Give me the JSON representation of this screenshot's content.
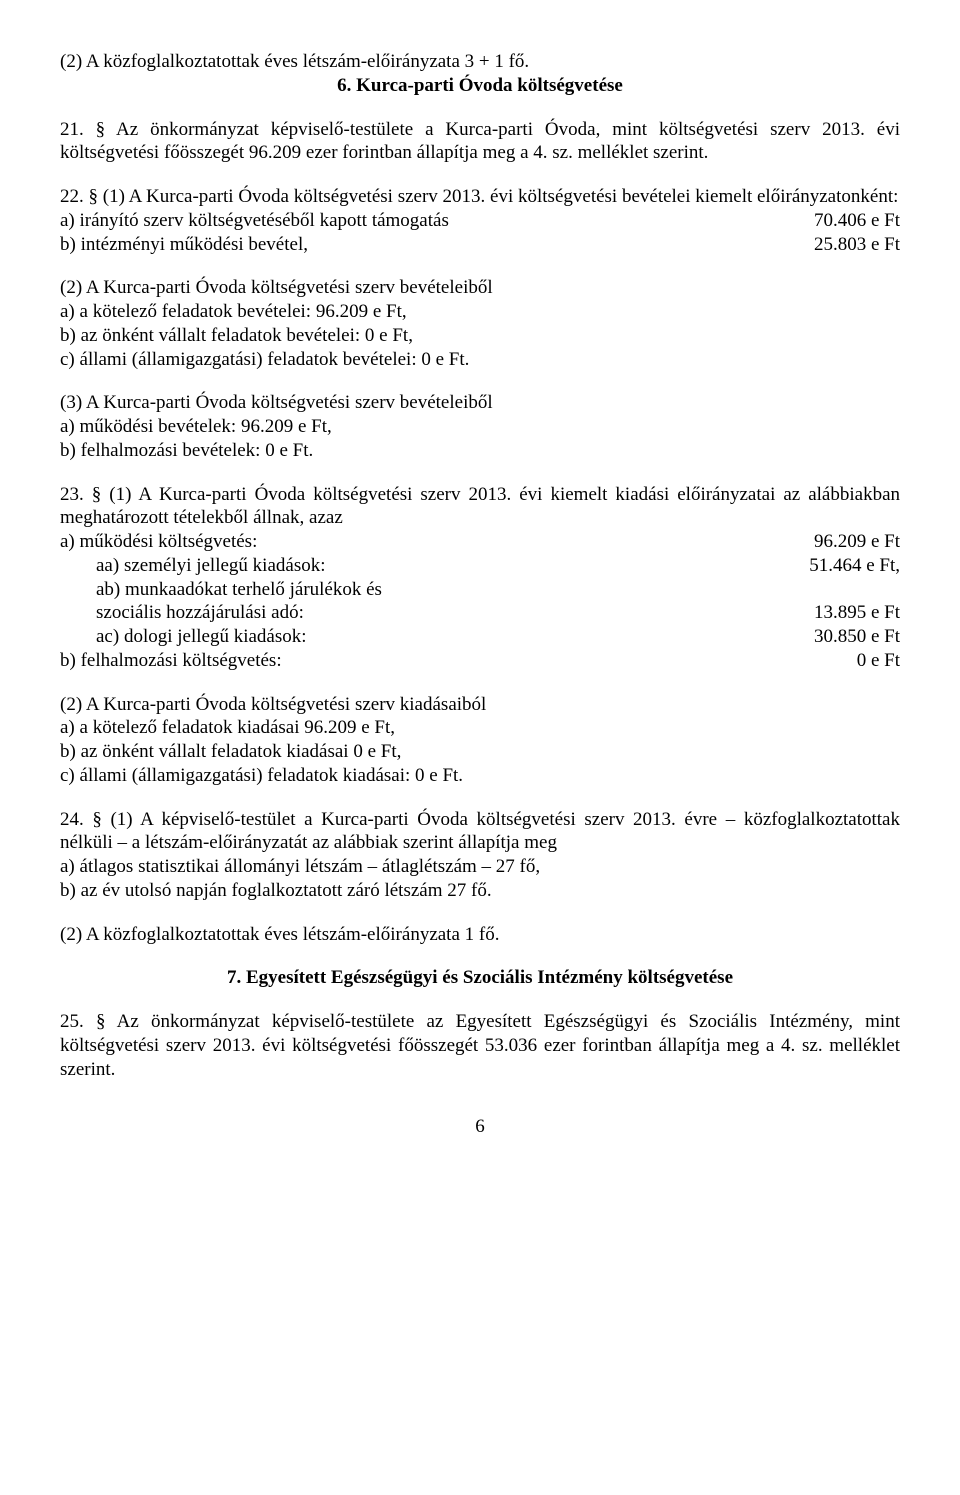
{
  "p1": "(2) A közfoglalkoztatottak éves létszám-előirányzata 3 + 1 fő.",
  "h6": "6. Kurca-parti Óvoda költségvetése",
  "p21": "21. § Az önkormányzat képviselő-testülete a Kurca-parti Óvoda, mint költségvetési szerv 2013. évi költségvetési főösszegét 96.209 ezer forintban állapítja meg a 4. sz. melléklet szerint.",
  "p22_intro": "22. § (1) A Kurca-parti Óvoda  költségvetési szerv 2013. évi költségvetési bevételei kiemelt előirányzatonként:",
  "p22_a_label": "a) irányító szerv költségvetéséből kapott támogatás",
  "p22_a_value": "70.406 e Ft",
  "p22_b_label": "b) intézményi működési bevétel,",
  "p22_b_value": "25.803 e Ft",
  "p22_2a": "(2) A Kurca-parti Óvoda költségvetési szerv bevételeiből",
  "p22_2b": "a) a kötelező feladatok bevételei: 96.209 e Ft,",
  "p22_2c": "b) az önként vállalt feladatok bevételei: 0 e Ft,",
  "p22_2d": "c) állami (államigazgatási) feladatok bevételei: 0 e Ft.",
  "p22_3a": "(3) A Kurca-parti Óvoda költségvetési szerv bevételeiből",
  "p22_3b": "a) működési bevételek: 96.209 e Ft,",
  "p22_3c": "b) felhalmozási bevételek: 0 e Ft.",
  "p23_intro": "23. § (1) A Kurca-parti Óvoda költségvetési szerv 2013. évi kiemelt kiadási előirányzatai az alábbiakban meghatározott tételekből állnak, azaz",
  "p23_a_label": "a) működési költségvetés:",
  "p23_a_value": "96.209 e Ft",
  "p23_aa_label": "aa) személyi jellegű kiadások:",
  "p23_aa_value": "51.464 e Ft,",
  "p23_ab_label1": "ab) munkaadókat terhelő járulékok és",
  "p23_ab_label2": "szociális hozzájárulási adó:",
  "p23_ab_value": "13.895 e Ft",
  "p23_ac_label": "ac) dologi jellegű kiadások:",
  "p23_ac_value": "30.850 e Ft",
  "p23_b_label": "b) felhalmozási költségvetés:",
  "p23_b_value": "0 e Ft",
  "p23_2a": "(2) A Kurca-parti Óvoda költségvetési szerv kiadásaiból",
  "p23_2b": "a) a kötelező feladatok kiadásai 96.209 e Ft,",
  "p23_2c": "b) az önként vállalt feladatok kiadásai 0 e Ft,",
  "p23_2d": "c) állami (államigazgatási) feladatok kiadásai: 0 e Ft.",
  "p24": "24. § (1) A képviselő-testület a Kurca-parti Óvoda költségvetési szerv 2013. évre – közfoglalkoztatottak nélküli – a létszám-előirányzatát az alábbiak szerint állapítja meg",
  "p24a": "a) átlagos statisztikai állományi létszám – átlaglétszám – 27 fő,",
  "p24b": "b) az év utolsó napján foglalkoztatott záró létszám 27 fő.",
  "p24_2": "(2) A közfoglalkoztatottak éves létszám-előirányzata 1 fő.",
  "h7": "7. Egyesített Egészségügyi és Szociális Intézmény költségvetése",
  "p25": "25. § Az önkormányzat képviselő-testülete az Egyesített Egészségügyi és Szociális Intézmény, mint költségvetési szerv 2013. évi költségvetési főösszegét 53.036 ezer forintban állapítja meg a 4. sz. melléklet szerint.",
  "page_number": "6"
}
